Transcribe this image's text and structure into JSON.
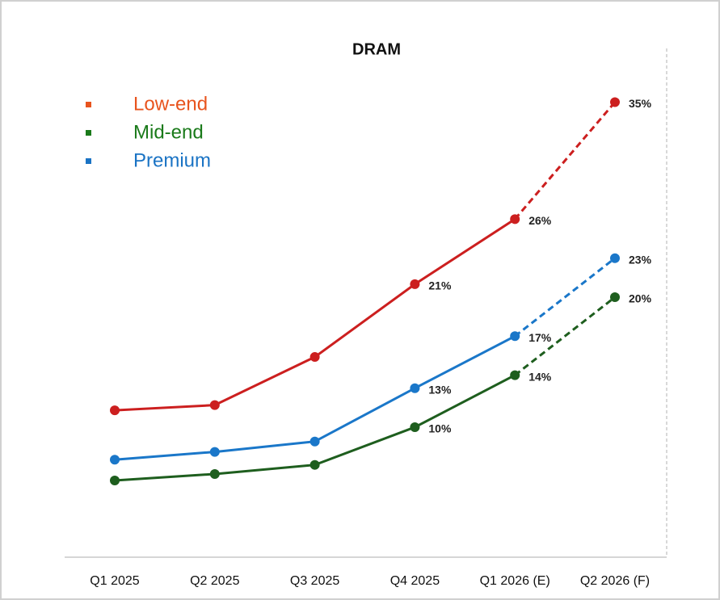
{
  "chart_data": {
    "type": "line",
    "title": "DRAM",
    "categories": [
      "Q1 2025",
      "Q2 2025",
      "Q3 2025",
      "Q4 2025",
      "Q1 2026 (E)",
      "Q2 2026 (F)"
    ],
    "series": [
      {
        "name": "Low-end",
        "color": "#cc1f1f",
        "legend_color": "#e8541e",
        "values": [
          11.3,
          11.7,
          15.4,
          21,
          26,
          35
        ],
        "value_labels": [
          null,
          null,
          null,
          "21%",
          "26%",
          "35%"
        ]
      },
      {
        "name": "Mid-end",
        "color": "#1e5e1e",
        "legend_color": "#1a7a1a",
        "values": [
          5.9,
          6.4,
          7.1,
          10,
          14,
          20
        ],
        "value_labels": [
          null,
          null,
          null,
          "10%",
          "14%",
          "20%"
        ]
      },
      {
        "name": "Premium",
        "color": "#1a77c9",
        "legend_color": "#1a73c4",
        "values": [
          7.5,
          8.1,
          8.9,
          13,
          17,
          23
        ],
        "value_labels": [
          null,
          null,
          null,
          "13%",
          "17%",
          "23%"
        ]
      }
    ],
    "projection_start": 4,
    "ylim": [
      0,
      40
    ],
    "legend": "top-left"
  }
}
